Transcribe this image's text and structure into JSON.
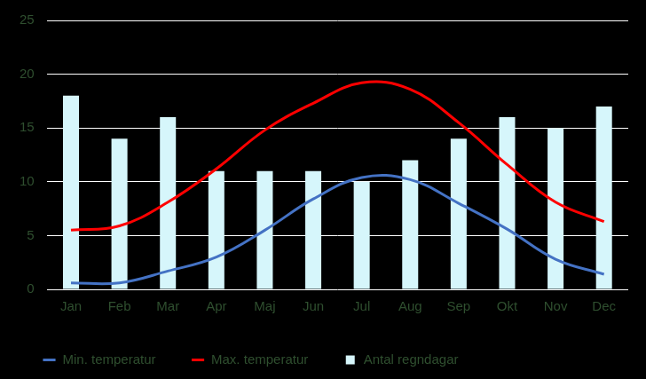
{
  "chart_data": {
    "type": "bar",
    "categories": [
      "Jan",
      "Feb",
      "Mar",
      "Apr",
      "Maj",
      "Jun",
      "Jul",
      "Aug",
      "Sep",
      "Okt",
      "Nov",
      "Dec"
    ],
    "series": [
      {
        "name": "Antal regndagar",
        "type": "bar",
        "color": "#d6f6fb",
        "values": [
          18,
          14,
          16,
          11,
          11,
          11,
          10,
          12,
          14,
          16,
          15,
          17
        ]
      },
      {
        "name": "Min. temperatur",
        "type": "line",
        "color": "#4472c4",
        "values": [
          0.6,
          0.6,
          1.7,
          3.0,
          5.5,
          8.4,
          10.4,
          10.2,
          8.0,
          5.6,
          2.8,
          1.4
        ]
      },
      {
        "name": "Max. temperatur",
        "type": "line",
        "color": "#ff0000",
        "values": [
          5.5,
          5.9,
          8.1,
          11.2,
          14.8,
          17.3,
          19.2,
          18.6,
          15.5,
          11.6,
          8.1,
          6.3
        ]
      }
    ],
    "ylim": [
      0,
      25
    ],
    "yticks": [
      0,
      5,
      10,
      15,
      20,
      25
    ],
    "grid": true,
    "legend": "bottom"
  }
}
